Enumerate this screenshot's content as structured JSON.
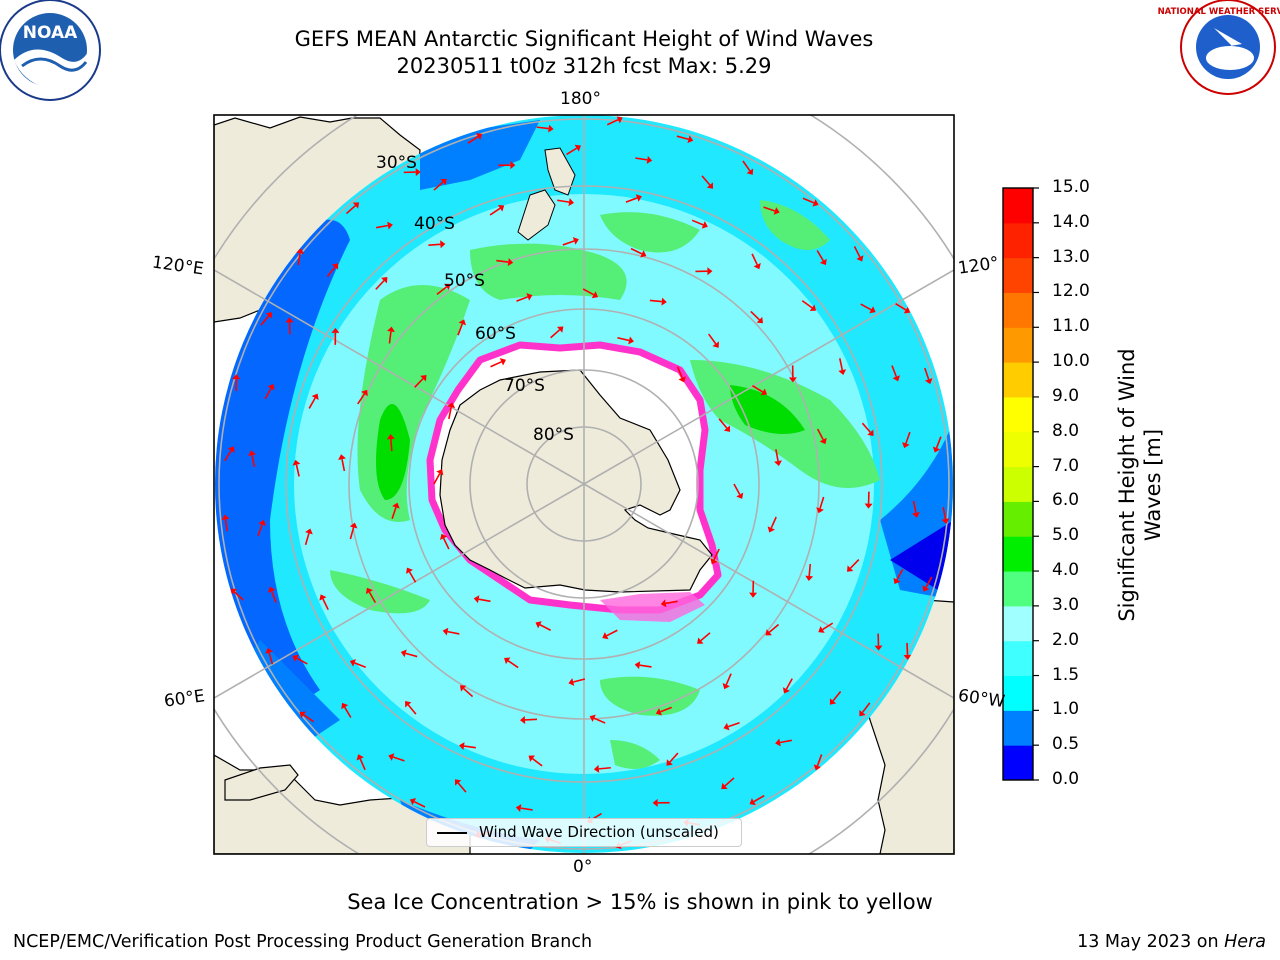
{
  "header": {
    "title_line1": "GEFS MEAN Antarctic Significant Height of Wind Waves",
    "title_line2": "20230511 t00z 312h fcst   Max: 5.29"
  },
  "map": {
    "projection": "south-polar stereographic",
    "longitude_labels": {
      "top": "180°",
      "bottom": "0°",
      "upper_left": "120°E",
      "lower_left": "60°E",
      "upper_right": "120°",
      "lower_right": "60°W"
    },
    "latitude_labels": [
      "30°S",
      "40°S",
      "50°S",
      "60°S",
      "70°S",
      "80°S"
    ],
    "legend_label": "Wind Wave Direction (unscaled)",
    "arrow_color": "#ff0000",
    "land_color": "#eeebdb",
    "sea_ice_color": "#ff33cc"
  },
  "colorbar": {
    "label": "Significant Height of Wind Waves [m]",
    "ticks": [
      "0.0",
      "0.5",
      "1.0",
      "1.5",
      "2.0",
      "3.0",
      "4.0",
      "5.0",
      "6.0",
      "7.0",
      "8.0",
      "9.0",
      "10.0",
      "11.0",
      "12.0",
      "13.0",
      "14.0",
      "15.0"
    ],
    "colors": [
      "#0000ff",
      "#0080ff",
      "#00ffff",
      "#40ffff",
      "#a0ffff",
      "#50ff80",
      "#00ee00",
      "#66ee00",
      "#ccff00",
      "#eeff00",
      "#ffff00",
      "#ffcc00",
      "#ff9900",
      "#ff7700",
      "#ff4400",
      "#ff2200",
      "#ff0000"
    ]
  },
  "notes": {
    "sea_ice": "Sea Ice Concentration > 15% is shown in pink to yellow"
  },
  "footer": {
    "left": "NCEP/EMC/Verification Post Processing Product Generation Branch",
    "right_date": "13 May 2023 on ",
    "right_host": "Hera"
  },
  "logos": {
    "noaa_text": "NOAA",
    "nws_text": "NATIONAL WEATHER SERVICE"
  }
}
